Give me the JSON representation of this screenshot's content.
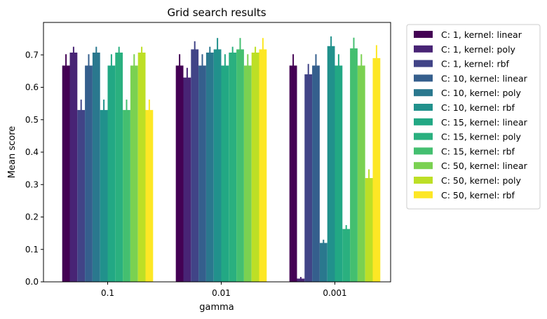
{
  "chart_data": {
    "type": "bar",
    "title": "Grid search results",
    "xlabel": "gamma",
    "ylabel": "Mean score",
    "ylim": [
      0,
      0.8
    ],
    "yticks": [
      0.0,
      0.1,
      0.2,
      0.3,
      0.4,
      0.5,
      0.6,
      0.7
    ],
    "ytick_labels": [
      "0.0",
      "0.1",
      "0.2",
      "0.3",
      "0.4",
      "0.5",
      "0.6",
      "0.7"
    ],
    "categories": [
      "0.1",
      "0.01",
      "0.001"
    ],
    "legend_position": "outside-right",
    "error_bars": true,
    "series": [
      {
        "name": "C: 1, kernel: linear",
        "color": "#440154",
        "values": [
          0.667,
          0.667,
          0.667
        ],
        "errors": [
          0.035,
          0.035,
          0.035
        ]
      },
      {
        "name": "C: 1, kernel: poly",
        "color": "#482475",
        "values": [
          0.707,
          0.63,
          0.01
        ],
        "errors": [
          0.018,
          0.03,
          0.005
        ]
      },
      {
        "name": "C: 1, kernel: rbf",
        "color": "#414487",
        "values": [
          0.53,
          0.717,
          0.64
        ],
        "errors": [
          0.032,
          0.025,
          0.032
        ]
      },
      {
        "name": "C: 10, kernel: linear",
        "color": "#355f8d",
        "values": [
          0.667,
          0.667,
          0.667
        ],
        "errors": [
          0.035,
          0.035,
          0.035
        ]
      },
      {
        "name": "C: 10, kernel: poly",
        "color": "#2a788e",
        "values": [
          0.707,
          0.707,
          0.12
        ],
        "errors": [
          0.018,
          0.018,
          0.01
        ]
      },
      {
        "name": "C: 10, kernel: rbf",
        "color": "#21918c",
        "values": [
          0.53,
          0.717,
          0.727
        ],
        "errors": [
          0.032,
          0.035,
          0.03
        ]
      },
      {
        "name": "C: 15, kernel: linear",
        "color": "#22a884",
        "values": [
          0.667,
          0.667,
          0.667
        ],
        "errors": [
          0.035,
          0.035,
          0.035
        ]
      },
      {
        "name": "C: 15, kernel: poly",
        "color": "#2ab07f",
        "values": [
          0.707,
          0.707,
          0.163
        ],
        "errors": [
          0.018,
          0.018,
          0.012
        ]
      },
      {
        "name": "C: 15, kernel: rbf",
        "color": "#44bf70",
        "values": [
          0.53,
          0.717,
          0.72
        ],
        "errors": [
          0.032,
          0.035,
          0.033
        ]
      },
      {
        "name": "C: 50, kernel: linear",
        "color": "#7ad151",
        "values": [
          0.667,
          0.667,
          0.667
        ],
        "errors": [
          0.035,
          0.035,
          0.035
        ]
      },
      {
        "name": "C: 50, kernel: poly",
        "color": "#bddf26",
        "values": [
          0.707,
          0.707,
          0.32
        ],
        "errors": [
          0.018,
          0.018,
          0.027
        ]
      },
      {
        "name": "C: 50, kernel: rbf",
        "color": "#fde725",
        "values": [
          0.53,
          0.717,
          0.69
        ],
        "errors": [
          0.032,
          0.035,
          0.04
        ]
      }
    ]
  }
}
